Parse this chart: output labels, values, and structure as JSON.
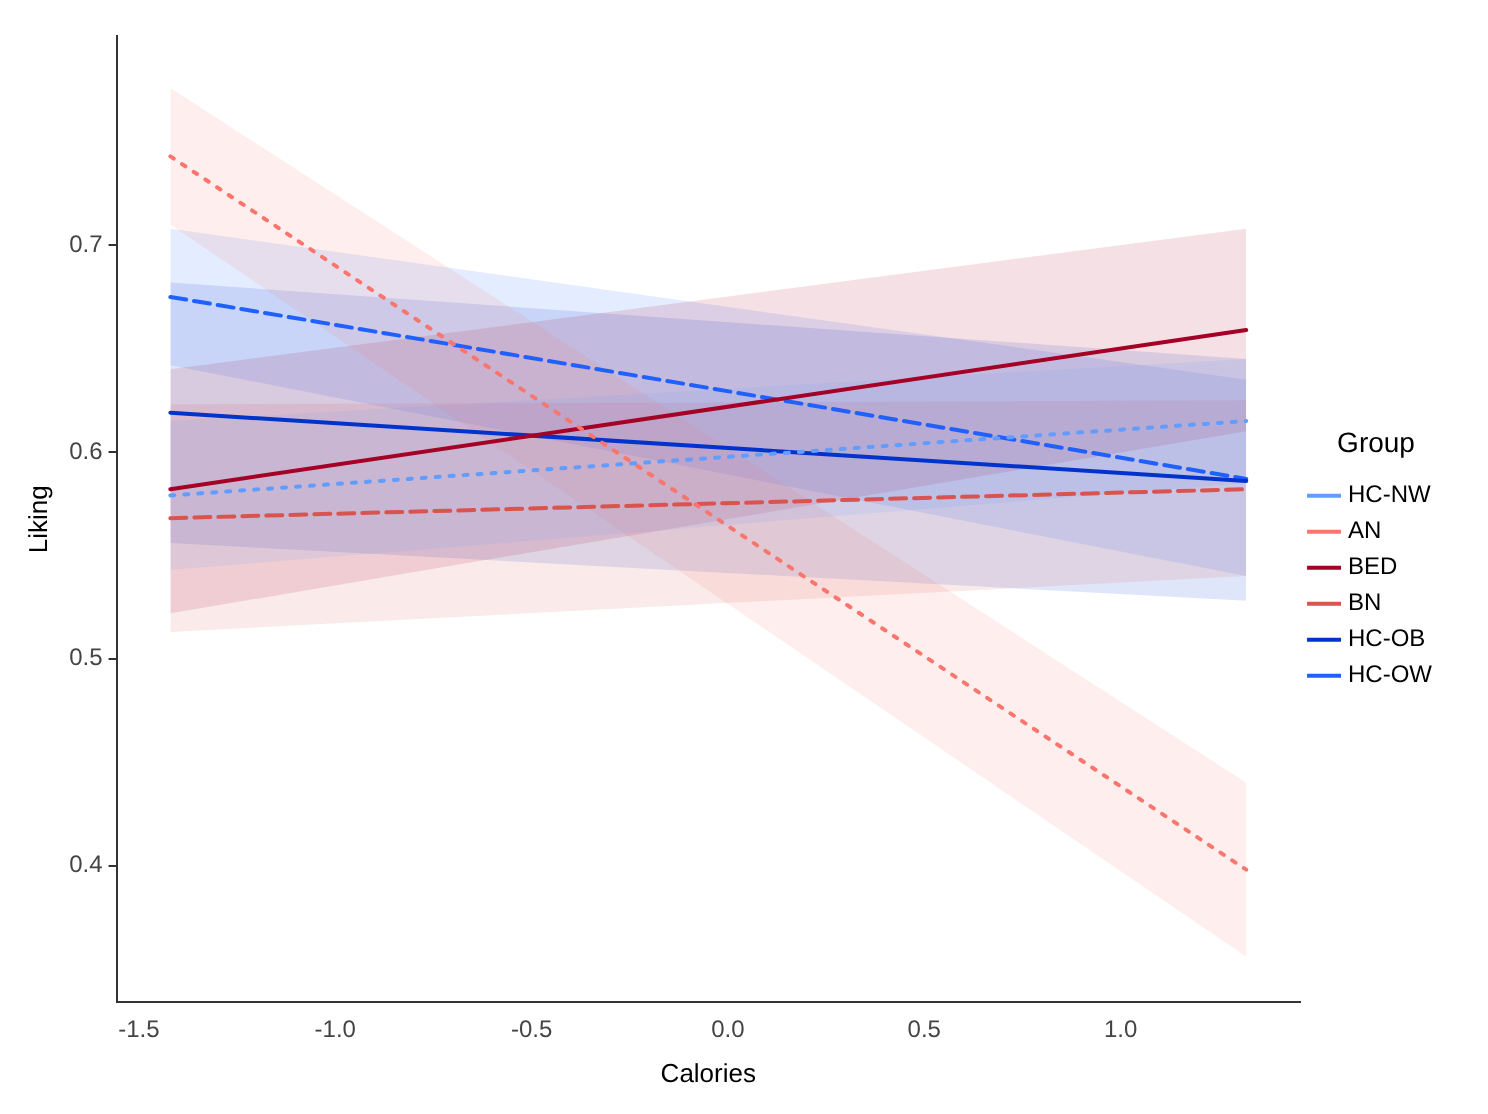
{
  "chart_data": {
    "type": "line",
    "xlabel": "Calories",
    "ylabel": "Liking",
    "legend_title": "Group",
    "legend": "right",
    "grid": false,
    "xlim": [
      -1.557,
      1.457
    ],
    "ylim": [
      0.334,
      0.801
    ],
    "xticks": [
      -1.5,
      {
        "value": -1,
        "label": "-1.0"
      },
      -0.5,
      {
        "value": 0,
        "label": "0.0"
      },
      0.5,
      {
        "value": 1,
        "label": "1.0"
      }
    ],
    "yticks": [
      0.4,
      0.5,
      0.6,
      0.7
    ],
    "x": [
      -1.42,
      1.32
    ],
    "series": [
      {
        "name": "HC-NW",
        "color": "#619cff",
        "line_style": "dotted",
        "values": [
          0.579,
          0.615
        ],
        "lower": [
          0.543,
          0.585
        ],
        "upper": [
          0.615,
          0.645
        ]
      },
      {
        "name": "AN",
        "color": "#f8766d",
        "line_style": "dotted",
        "values": [
          0.743,
          0.398
        ],
        "lower": [
          0.71,
          0.356
        ],
        "upper": [
          0.776,
          0.44
        ]
      },
      {
        "name": "BED",
        "color": "#a50026",
        "line_style": "solid",
        "values": [
          0.582,
          0.659
        ],
        "lower": [
          0.522,
          0.61
        ],
        "upper": [
          0.64,
          0.708
        ]
      },
      {
        "name": "BN",
        "color": "#d9534f",
        "line_style": "dashed",
        "values": [
          0.568,
          0.582
        ],
        "lower": [
          0.513,
          0.54
        ],
        "upper": [
          0.623,
          0.625
        ]
      },
      {
        "name": "HC-OB",
        "color": "#0033cc",
        "line_style": "solid",
        "values": [
          0.619,
          0.586
        ],
        "lower": [
          0.556,
          0.528
        ],
        "upper": [
          0.682,
          0.645
        ]
      },
      {
        "name": "HC-OW",
        "color": "#2060ff",
        "line_style": "dashed",
        "values": [
          0.675,
          0.587
        ],
        "lower": [
          0.642,
          0.54
        ],
        "upper": [
          0.708,
          0.635
        ]
      }
    ]
  }
}
